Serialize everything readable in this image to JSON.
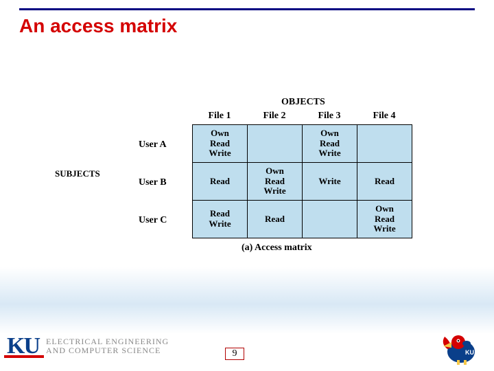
{
  "title": "An access matrix",
  "colors": {
    "title": "#d40000",
    "underline": "#000080",
    "cell_bg": "#bfdeee",
    "border": "#000000",
    "ku_blue": "#0a3f8a",
    "ku_red": "#d40000",
    "dept_gray": "#888888",
    "pagebox_border": "#b00000",
    "background": "#ffffff"
  },
  "matrix": {
    "objects_label": "OBJECTS",
    "subjects_label": "SUBJECTS",
    "columns": [
      "File 1",
      "File 2",
      "File 3",
      "File 4"
    ],
    "rows": [
      "User A",
      "User B",
      "User C"
    ],
    "cells": [
      [
        "Own\nRead\nWrite",
        "",
        "Own\nRead\nWrite",
        ""
      ],
      [
        "Read",
        "Own\nRead\nWrite",
        "Write",
        "Read"
      ],
      [
        "Read\nWrite",
        "Read",
        "",
        "Own\nRead\nWrite"
      ]
    ],
    "caption": "(a) Access matrix"
  },
  "footer": {
    "ku_mark": "KU",
    "dept_line1": "ELECTRICAL ENGINEERING",
    "dept_line2": "AND COMPUTER SCIENCE",
    "page_number": "9"
  }
}
